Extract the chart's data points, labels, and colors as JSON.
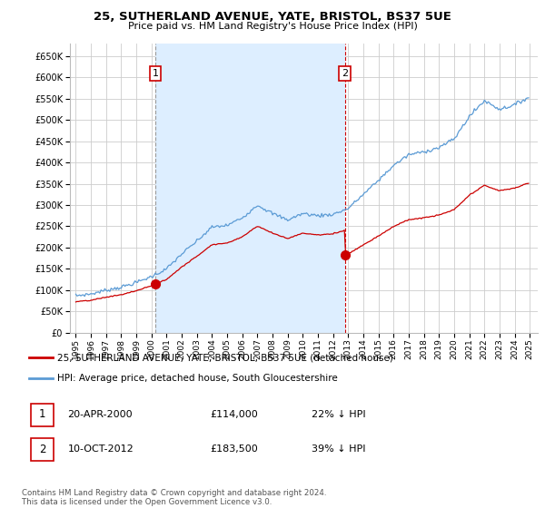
{
  "title": "25, SUTHERLAND AVENUE, YATE, BRISTOL, BS37 5UE",
  "subtitle": "Price paid vs. HM Land Registry's House Price Index (HPI)",
  "ylim": [
    0,
    680000
  ],
  "yticks": [
    0,
    50000,
    100000,
    150000,
    200000,
    250000,
    300000,
    350000,
    400000,
    450000,
    500000,
    550000,
    600000,
    650000
  ],
  "sale1_x": 2000.25,
  "sale1_y": 114000,
  "sale2_x": 2012.78,
  "sale2_y": 183500,
  "legend_sale": "25, SUTHERLAND AVENUE, YATE, BRISTOL, BS37 5UE (detached house)",
  "legend_hpi": "HPI: Average price, detached house, South Gloucestershire",
  "sale_color": "#cc0000",
  "hpi_color": "#5b9bd5",
  "shade_color": "#ddeeff",
  "vline1_color": "#999999",
  "vline2_color": "#cc0000",
  "table_row1": [
    "1",
    "20-APR-2000",
    "£114,000",
    "22% ↓ HPI"
  ],
  "table_row2": [
    "2",
    "10-OCT-2012",
    "£183,500",
    "39% ↓ HPI"
  ],
  "footer": "Contains HM Land Registry data © Crown copyright and database right 2024.\nThis data is licensed under the Open Government Licence v3.0.",
  "background_color": "#ffffff",
  "grid_color": "#cccccc",
  "xlim_min": 1994.6,
  "xlim_max": 2025.5,
  "xticks": [
    1995,
    1996,
    1997,
    1998,
    1999,
    2000,
    2001,
    2002,
    2003,
    2004,
    2005,
    2006,
    2007,
    2008,
    2009,
    2010,
    2011,
    2012,
    2013,
    2014,
    2015,
    2016,
    2017,
    2018,
    2019,
    2020,
    2021,
    2022,
    2023,
    2024,
    2025
  ]
}
